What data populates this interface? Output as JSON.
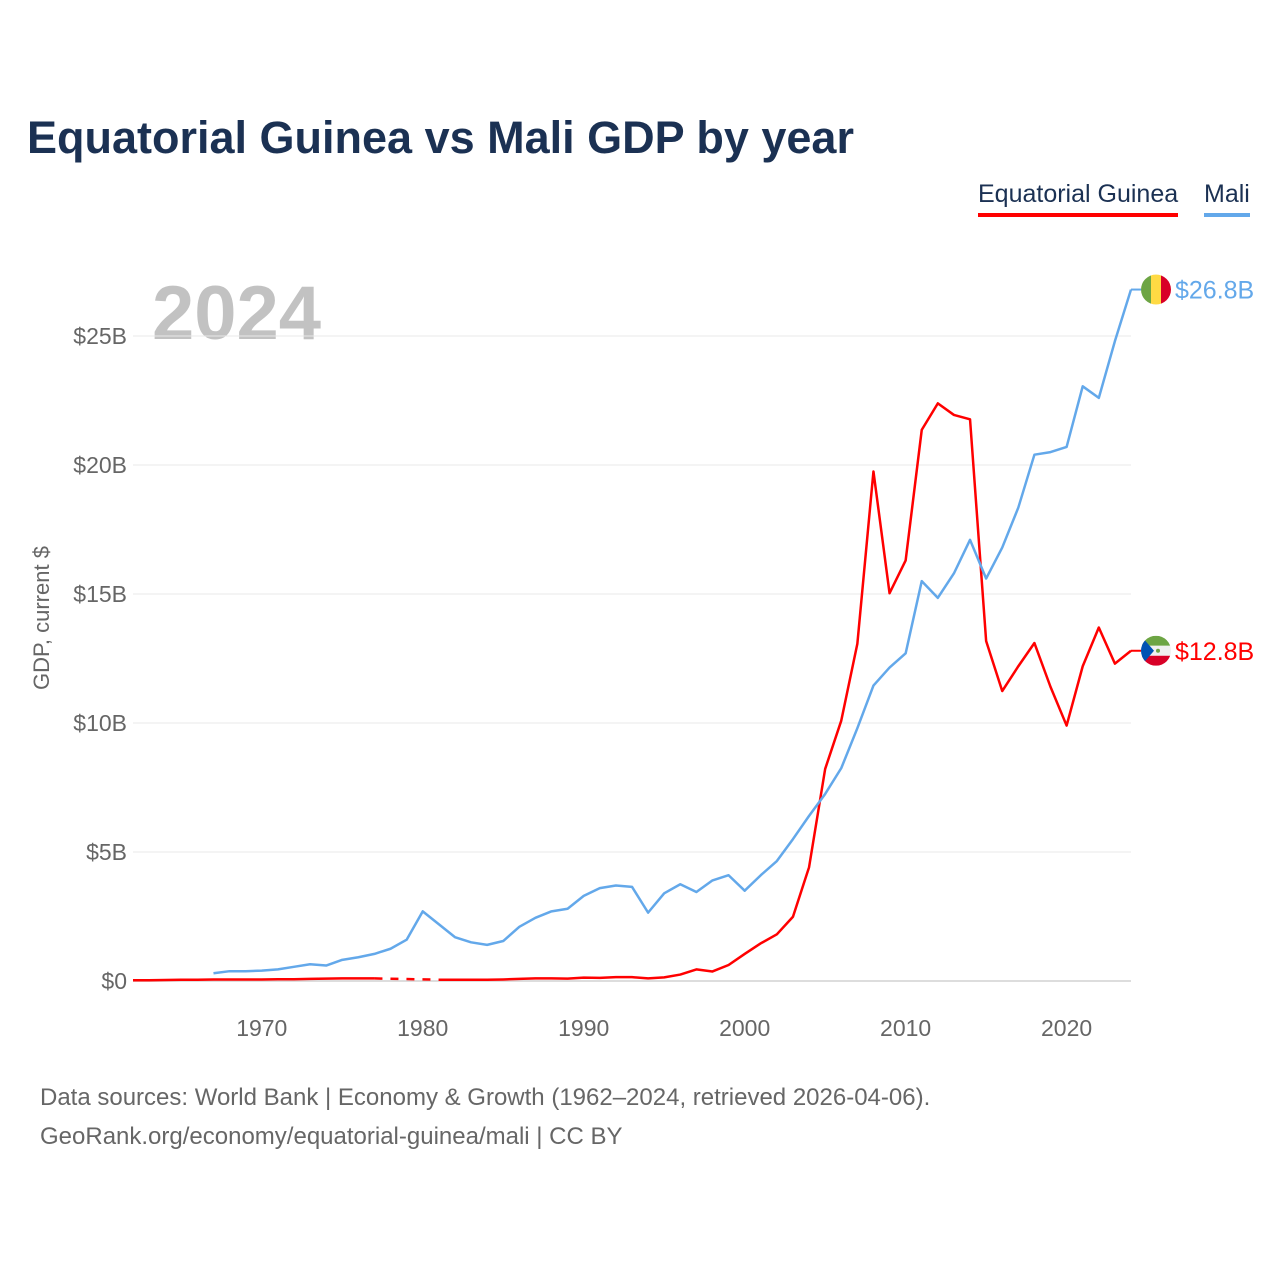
{
  "title": "Equatorial Guinea vs Mali GDP by year",
  "current_year": "2024",
  "footer": {
    "line1": "Data sources: World Bank | Economy & Growth (1962–2024, retrieved 2026-04-06).",
    "line2": "GeoRank.org/economy/equatorial-guinea/mali | CC BY"
  },
  "chart_data": {
    "type": "line",
    "title": "Equatorial Guinea vs Mali GDP by year",
    "xlabel": "",
    "ylabel": "GDP, current $",
    "xlim": [
      1962,
      2024
    ],
    "ylim": [
      0,
      27
    ],
    "grid": true,
    "legend_position": "top-right",
    "x_ticks": [
      "1970",
      "1980",
      "1990",
      "2000",
      "2010",
      "2020"
    ],
    "y_ticks": [
      {
        "value": 0,
        "label": "$0"
      },
      {
        "value": 5,
        "label": "$5B"
      },
      {
        "value": 10,
        "label": "$10B"
      },
      {
        "value": 15,
        "label": "$15B"
      },
      {
        "value": 20,
        "label": "$20B"
      },
      {
        "value": 25,
        "label": "$25B"
      }
    ],
    "series": [
      {
        "name": "Equatorial Guinea",
        "color": "#ff0000",
        "end_label": "$12.8B",
        "start_year": 1962,
        "values": [
          0.03,
          0.03,
          0.04,
          0.05,
          0.05,
          0.06,
          0.06,
          0.06,
          0.06,
          0.07,
          0.07,
          0.08,
          0.09,
          0.1,
          0.1,
          0.1,
          null,
          null,
          null,
          0.05,
          0.05,
          0.05,
          0.05,
          0.06,
          0.08,
          0.1,
          0.1,
          0.09,
          0.13,
          0.12,
          0.15,
          0.15,
          0.1,
          0.14,
          0.25,
          0.45,
          0.37,
          0.62,
          1.05,
          1.46,
          1.81,
          2.49,
          4.41,
          8.22,
          10.09,
          13.07,
          19.75,
          15.03,
          16.3,
          21.36,
          22.39,
          21.94,
          21.77,
          13.18,
          11.24,
          12.2,
          13.1,
          11.4,
          9.9,
          12.2,
          13.7,
          12.3,
          12.8
        ]
      },
      {
        "name": "Mali",
        "color": "#63a8ea",
        "end_label": "$26.8B",
        "start_year": 1967,
        "values": [
          0.3,
          0.38,
          0.38,
          0.4,
          0.45,
          0.55,
          0.65,
          0.6,
          0.82,
          0.92,
          1.05,
          1.25,
          1.6,
          2.7,
          2.2,
          1.7,
          1.5,
          1.4,
          1.55,
          2.1,
          2.45,
          2.7,
          2.8,
          3.3,
          3.6,
          3.7,
          3.65,
          2.65,
          3.4,
          3.75,
          3.45,
          3.9,
          4.1,
          3.5,
          4.1,
          4.65,
          5.5,
          6.4,
          7.25,
          8.25,
          9.8,
          11.45,
          12.15,
          12.7,
          15.5,
          14.85,
          15.8,
          17.1,
          15.6,
          16.8,
          18.35,
          20.4,
          20.5,
          20.7,
          23.05,
          22.6,
          24.8,
          26.8
        ]
      }
    ]
  }
}
